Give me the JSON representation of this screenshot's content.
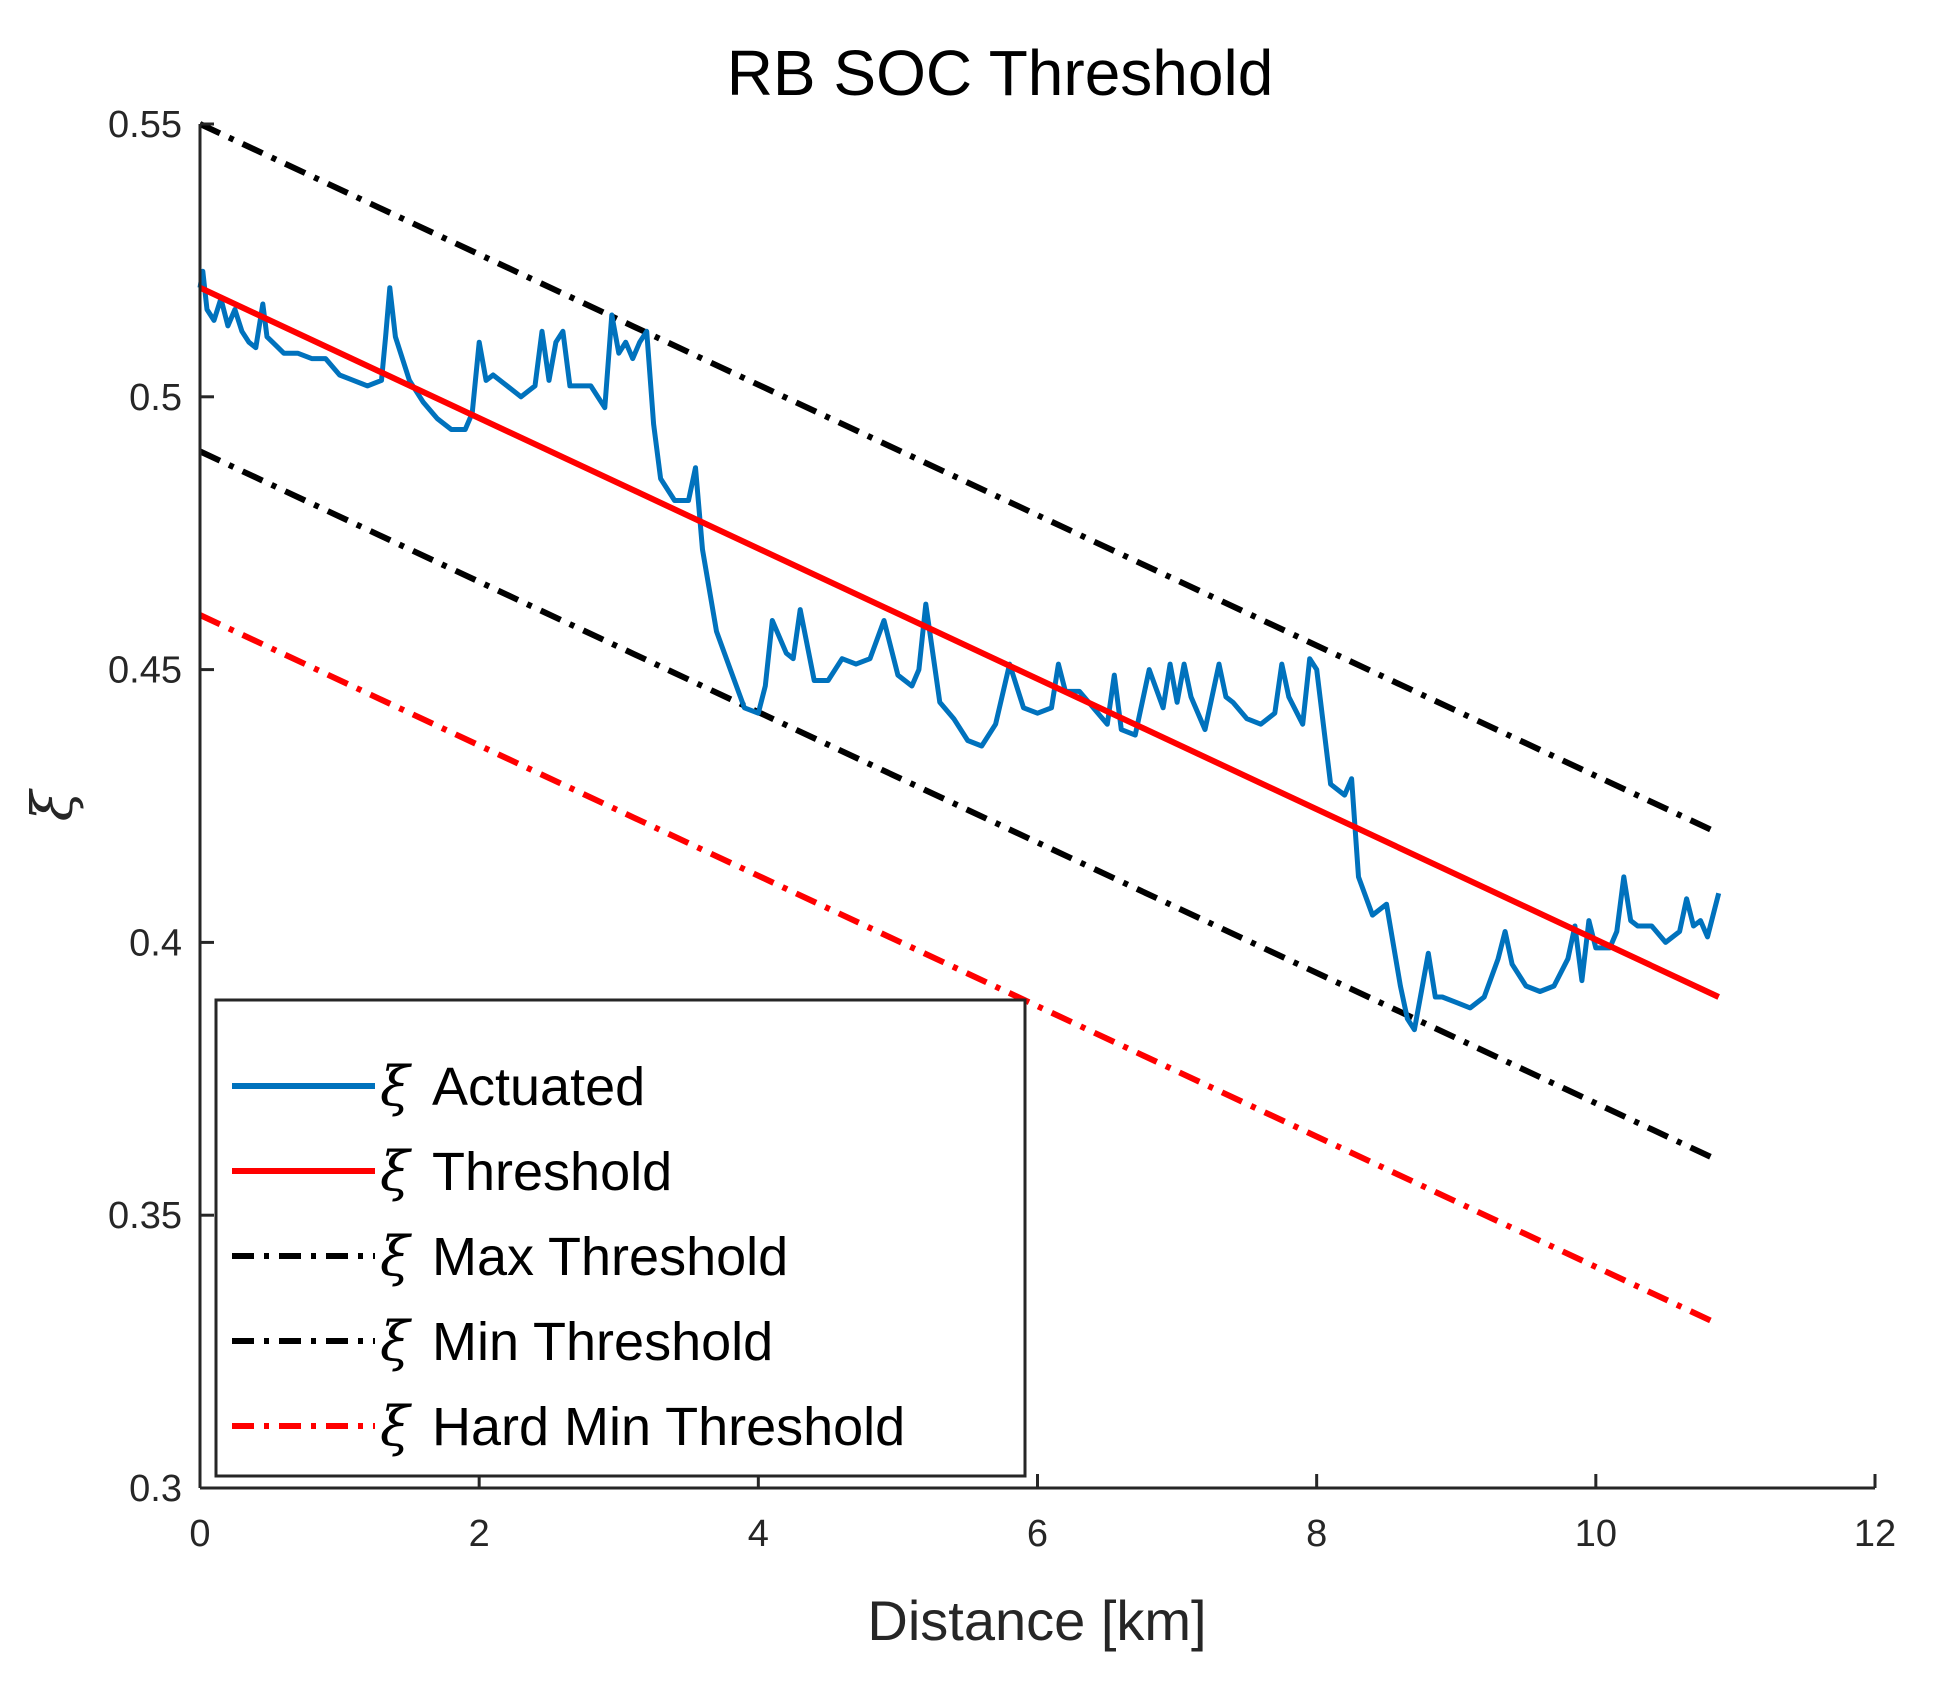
{
  "chart_data": {
    "type": "line",
    "title": "RB SOC Threshold",
    "xlabel": "Distance [km]",
    "ylabel": "ξ",
    "xlim": [
      0,
      12
    ],
    "ylim": [
      0.3,
      0.55
    ],
    "xticks": [
      0,
      2,
      4,
      6,
      8,
      10,
      12
    ],
    "xtick_labels": [
      "0",
      "2",
      "4",
      "6",
      "8",
      "10",
      "12"
    ],
    "yticks": [
      0.3,
      0.35,
      0.4,
      0.45,
      0.5,
      0.55
    ],
    "ytick_labels": [
      "0.3",
      "0.35",
      "0.4",
      "0.45",
      "0.5",
      "0.55"
    ],
    "grid": false,
    "legend_position": "bottom-left",
    "legend_symbol": "ξ",
    "series": [
      {
        "name": "Actuated",
        "color": "#0072bd",
        "style": "solid",
        "x": [
          0,
          0.02,
          0.05,
          0.1,
          0.15,
          0.2,
          0.25,
          0.3,
          0.35,
          0.4,
          0.45,
          0.48,
          0.52,
          0.6,
          0.7,
          0.8,
          0.9,
          1.0,
          1.1,
          1.2,
          1.3,
          1.33,
          1.36,
          1.4,
          1.5,
          1.6,
          1.7,
          1.8,
          1.9,
          1.95,
          2.0,
          2.05,
          2.1,
          2.2,
          2.3,
          2.35,
          2.4,
          2.45,
          2.5,
          2.55,
          2.6,
          2.65,
          2.7,
          2.8,
          2.9,
          2.95,
          3.0,
          3.05,
          3.1,
          3.15,
          3.2,
          3.25,
          3.3,
          3.4,
          3.5,
          3.55,
          3.6,
          3.7,
          3.8,
          3.9,
          4.0,
          4.05,
          4.1,
          4.2,
          4.25,
          4.3,
          4.4,
          4.5,
          4.6,
          4.7,
          4.8,
          4.9,
          5.0,
          5.1,
          5.15,
          5.2,
          5.3,
          5.4,
          5.5,
          5.6,
          5.7,
          5.8,
          5.9,
          6.0,
          6.1,
          6.15,
          6.2,
          6.3,
          6.4,
          6.5,
          6.55,
          6.6,
          6.7,
          6.8,
          6.9,
          6.95,
          7.0,
          7.05,
          7.1,
          7.2,
          7.3,
          7.35,
          7.4,
          7.5,
          7.6,
          7.7,
          7.75,
          7.8,
          7.9,
          7.95,
          8.0,
          8.1,
          8.2,
          8.25,
          8.3,
          8.4,
          8.5,
          8.6,
          8.65,
          8.7,
          8.75,
          8.8,
          8.85,
          8.9,
          9.0,
          9.1,
          9.2,
          9.3,
          9.35,
          9.4,
          9.5,
          9.6,
          9.7,
          9.8,
          9.85,
          9.9,
          9.95,
          10.0,
          10.1,
          10.15,
          10.2,
          10.25,
          10.3,
          10.4,
          10.5,
          10.6,
          10.65,
          10.7,
          10.75,
          10.8,
          10.88
        ],
        "y": [
          0.52,
          0.523,
          0.516,
          0.514,
          0.518,
          0.513,
          0.516,
          0.512,
          0.51,
          0.509,
          0.517,
          0.511,
          0.51,
          0.508,
          0.508,
          0.507,
          0.507,
          0.504,
          0.503,
          0.502,
          0.503,
          0.511,
          0.52,
          0.511,
          0.503,
          0.499,
          0.496,
          0.494,
          0.494,
          0.497,
          0.51,
          0.503,
          0.504,
          0.502,
          0.5,
          0.501,
          0.502,
          0.512,
          0.503,
          0.51,
          0.512,
          0.502,
          0.502,
          0.502,
          0.498,
          0.515,
          0.508,
          0.51,
          0.507,
          0.51,
          0.512,
          0.495,
          0.485,
          0.481,
          0.481,
          0.487,
          0.472,
          0.457,
          0.45,
          0.443,
          0.442,
          0.447,
          0.459,
          0.453,
          0.452,
          0.461,
          0.448,
          0.448,
          0.452,
          0.451,
          0.452,
          0.459,
          0.449,
          0.447,
          0.45,
          0.462,
          0.444,
          0.441,
          0.437,
          0.436,
          0.44,
          0.451,
          0.443,
          0.442,
          0.443,
          0.451,
          0.446,
          0.446,
          0.443,
          0.44,
          0.449,
          0.439,
          0.438,
          0.45,
          0.443,
          0.451,
          0.444,
          0.451,
          0.445,
          0.439,
          0.451,
          0.445,
          0.444,
          0.441,
          0.44,
          0.442,
          0.451,
          0.445,
          0.44,
          0.452,
          0.45,
          0.429,
          0.427,
          0.43,
          0.412,
          0.405,
          0.407,
          0.392,
          0.386,
          0.384,
          0.391,
          0.398,
          0.39,
          0.39,
          0.389,
          0.388,
          0.39,
          0.397,
          0.402,
          0.396,
          0.392,
          0.391,
          0.392,
          0.397,
          0.403,
          0.393,
          0.404,
          0.399,
          0.399,
          0.402,
          0.412,
          0.404,
          0.403,
          0.403,
          0.4,
          0.402,
          0.408,
          0.403,
          0.404,
          0.401,
          0.409
        ]
      },
      {
        "name": "Threshold",
        "color": "#ff0000",
        "style": "solid",
        "x": [
          0,
          10.88
        ],
        "y": [
          0.52,
          0.39
        ]
      },
      {
        "name": "Max Threshold",
        "color": "#000000",
        "style": "dashdot",
        "x": [
          0,
          10.88
        ],
        "y": [
          0.55,
          0.42
        ]
      },
      {
        "name": "Min Threshold",
        "color": "#000000",
        "style": "dashdot",
        "x": [
          0,
          10.88
        ],
        "y": [
          0.49,
          0.36
        ]
      },
      {
        "name": "Hard Min Threshold",
        "color": "#ff0000",
        "style": "dashdot",
        "x": [
          0,
          10.88
        ],
        "y": [
          0.46,
          0.33
        ]
      }
    ]
  }
}
